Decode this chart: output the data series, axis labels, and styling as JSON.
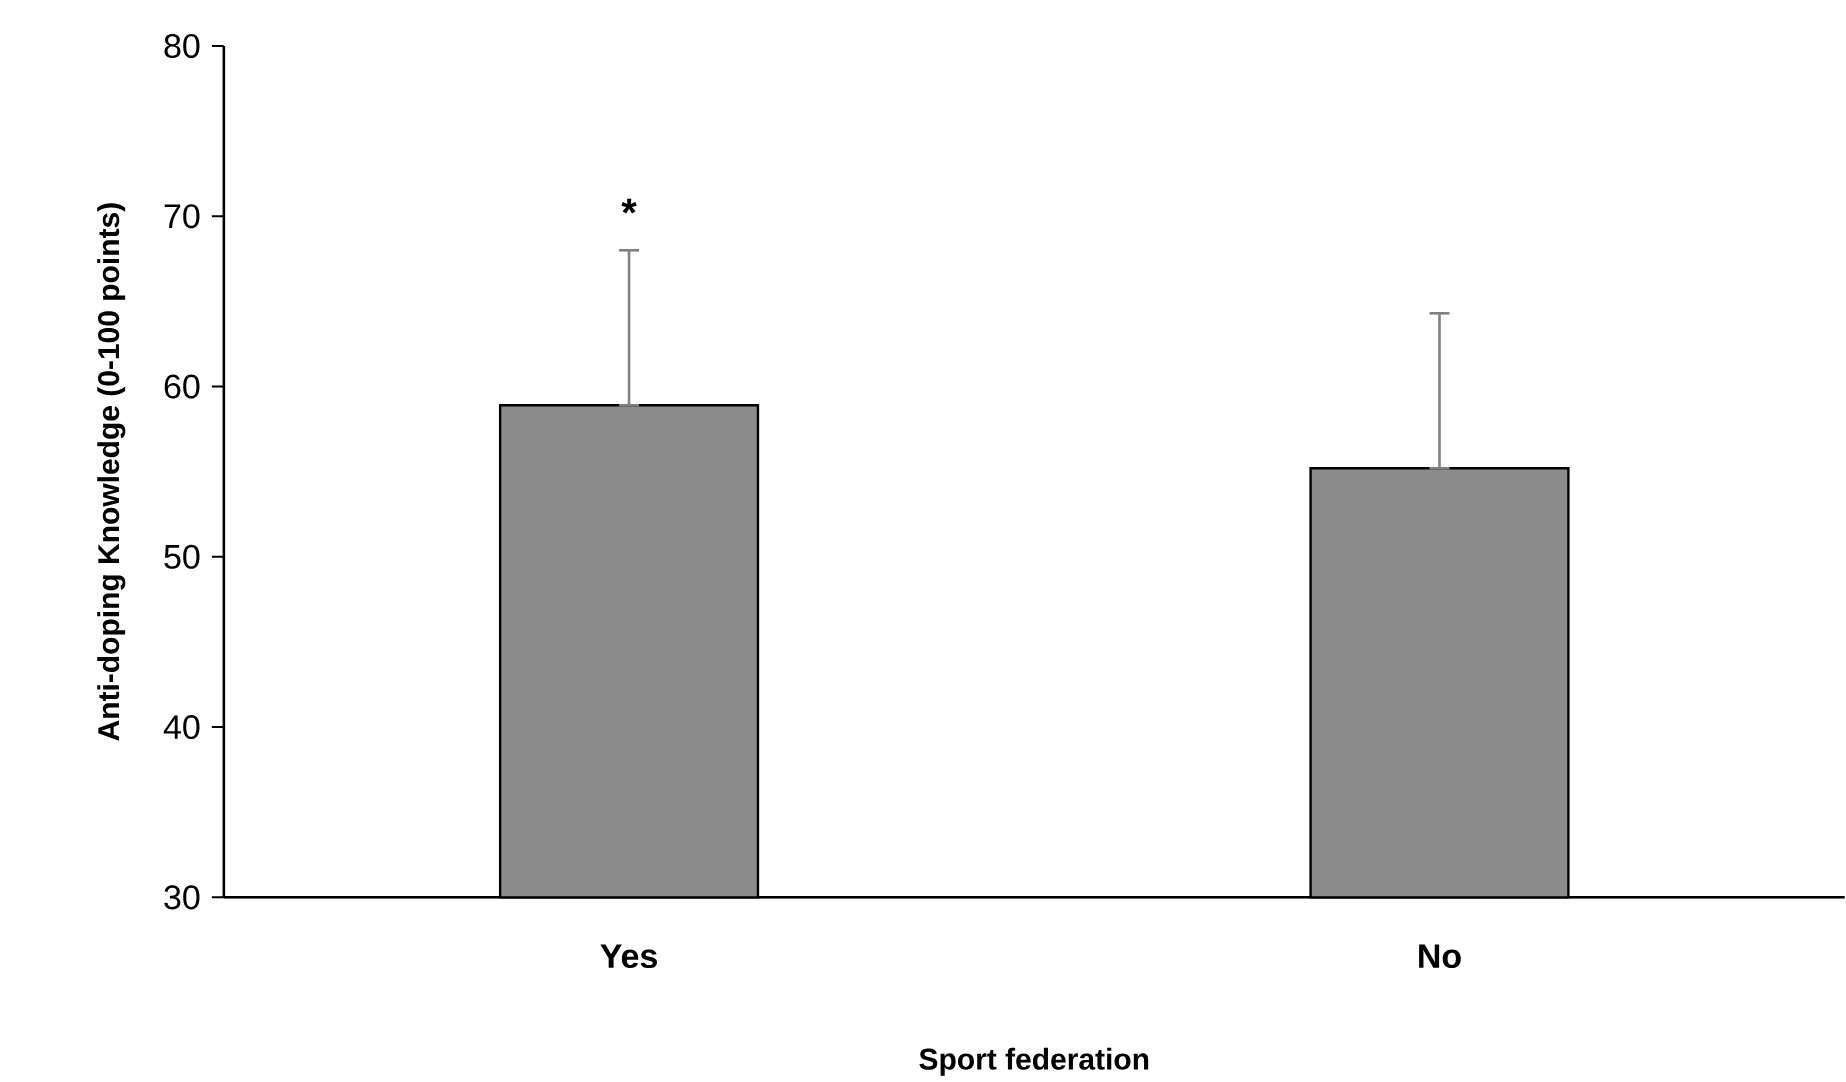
{
  "chart_data": {
    "type": "bar",
    "xlabel": "Sport federation",
    "ylabel": "Anti-doping Knowledge (0-100 points)",
    "categories": [
      "Yes",
      "No"
    ],
    "values": [
      58.9,
      55.2
    ],
    "errors": [
      [
        58.9,
        68.0
      ],
      [
        55.2,
        64.3
      ]
    ],
    "color": "#8c8c8c",
    "ylim": [
      30,
      80
    ],
    "yticks": [
      30,
      40,
      50,
      60,
      70,
      80
    ],
    "annotations": [
      "*"
    ]
  }
}
